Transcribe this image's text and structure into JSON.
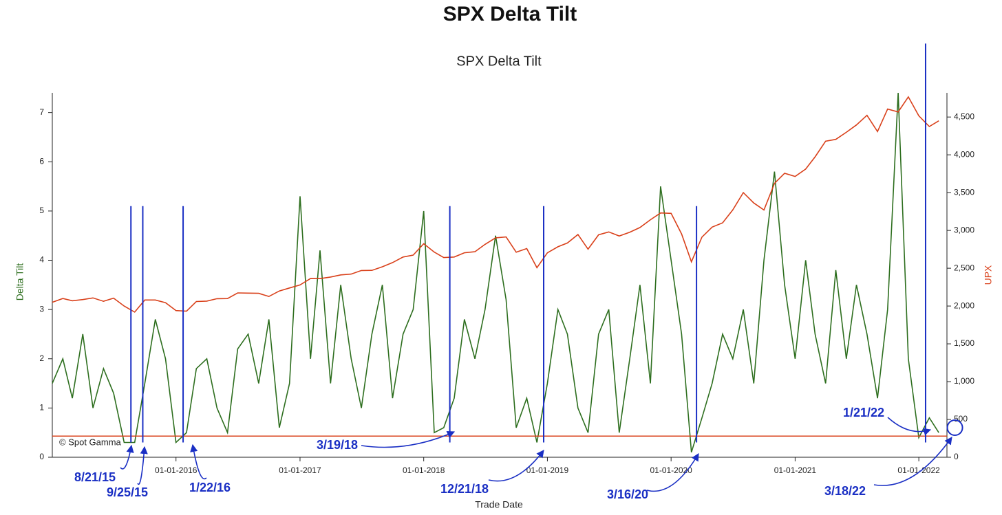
{
  "chart_data": {
    "type": "line",
    "title": "SPX Delta Tilt",
    "subtitle": "SPX Delta Tilt",
    "xlabel": "Trade Date",
    "ylabel": "Delta Tilt",
    "y2label": "UPX",
    "credit": "© Spot Gamma",
    "xlim": [
      "2015-01-01",
      "2022-03-25"
    ],
    "xticks": [
      {
        "value": "2016-01-01",
        "label": "01-01-2016"
      },
      {
        "value": "2017-01-01",
        "label": "01-01-2017"
      },
      {
        "value": "2018-01-01",
        "label": "01-01-2018"
      },
      {
        "value": "2019-01-01",
        "label": "01-01-2019"
      },
      {
        "value": "2020-01-01",
        "label": "01-01-2020"
      },
      {
        "value": "2021-01-01",
        "label": "01-01-2021"
      },
      {
        "value": "2022-01-01",
        "label": "01-01-2022"
      }
    ],
    "ylim": [
      0,
      7.4
    ],
    "yticks": [
      0,
      1,
      2,
      3,
      4,
      5,
      6,
      7
    ],
    "y2lim": [
      0,
      4820
    ],
    "y2ticks": [
      0,
      500,
      {
        "value": 1000,
        "label": "1,000"
      },
      {
        "value": 1500,
        "label": "1,500"
      },
      {
        "value": 2000,
        "label": "2,000"
      },
      {
        "value": 2500,
        "label": "2,500"
      },
      {
        "value": 3000,
        "label": "3,000"
      },
      {
        "value": 3500,
        "label": "3,500"
      },
      {
        "value": 4000,
        "label": "4,000"
      },
      {
        "value": 4500,
        "label": "4,500"
      }
    ],
    "x": [
      "2015-01-01",
      "2015-02-01",
      "2015-03-01",
      "2015-04-01",
      "2015-05-01",
      "2015-06-01",
      "2015-07-01",
      "2015-08-01",
      "2015-09-01",
      "2015-10-01",
      "2015-11-01",
      "2015-12-01",
      "2016-01-01",
      "2016-02-01",
      "2016-03-01",
      "2016-04-01",
      "2016-05-01",
      "2016-06-01",
      "2016-07-01",
      "2016-08-01",
      "2016-09-01",
      "2016-10-01",
      "2016-11-01",
      "2016-12-01",
      "2017-01-01",
      "2017-02-01",
      "2017-03-01",
      "2017-04-01",
      "2017-05-01",
      "2017-06-01",
      "2017-07-01",
      "2017-08-01",
      "2017-09-01",
      "2017-10-01",
      "2017-11-01",
      "2017-12-01",
      "2018-01-01",
      "2018-02-01",
      "2018-03-01",
      "2018-04-01",
      "2018-05-01",
      "2018-06-01",
      "2018-07-01",
      "2018-08-01",
      "2018-09-01",
      "2018-10-01",
      "2018-11-01",
      "2018-12-01",
      "2019-01-01",
      "2019-02-01",
      "2019-03-01",
      "2019-04-01",
      "2019-05-01",
      "2019-06-01",
      "2019-07-01",
      "2019-08-01",
      "2019-09-01",
      "2019-10-01",
      "2019-11-01",
      "2019-12-01",
      "2020-01-01",
      "2020-02-01",
      "2020-03-01",
      "2020-04-01",
      "2020-05-01",
      "2020-06-01",
      "2020-07-01",
      "2020-08-01",
      "2020-09-01",
      "2020-10-01",
      "2020-11-01",
      "2020-12-01",
      "2021-01-01",
      "2021-02-01",
      "2021-03-01",
      "2021-04-01",
      "2021-05-01",
      "2021-06-01",
      "2021-07-01",
      "2021-08-01",
      "2021-09-01",
      "2021-10-01",
      "2021-11-01",
      "2021-12-01",
      "2022-01-01",
      "2022-02-01",
      "2022-03-01"
    ],
    "series": [
      {
        "name": "Delta Tilt",
        "color": "#2d6e1e",
        "axis": "y",
        "values": [
          1.5,
          2.0,
          1.2,
          2.5,
          1.0,
          1.8,
          1.3,
          0.3,
          0.3,
          1.5,
          2.8,
          2.0,
          0.3,
          0.5,
          1.8,
          2.0,
          1.0,
          0.5,
          2.2,
          2.5,
          1.5,
          2.8,
          0.6,
          1.5,
          5.3,
          2.0,
          4.2,
          1.5,
          3.5,
          2.0,
          1.0,
          2.5,
          3.5,
          1.2,
          2.5,
          3.0,
          5.0,
          0.5,
          0.6,
          1.2,
          2.8,
          2.0,
          3.0,
          4.5,
          3.2,
          0.6,
          1.2,
          0.3,
          1.5,
          3.0,
          2.5,
          1.0,
          0.5,
          2.5,
          3.0,
          0.5,
          2.0,
          3.5,
          1.5,
          5.5,
          4.0,
          2.5,
          0.1,
          0.8,
          1.5,
          2.5,
          2.0,
          3.0,
          1.5,
          4.0,
          5.8,
          3.5,
          2.0,
          4.0,
          2.5,
          1.5,
          3.8,
          2.0,
          3.5,
          2.5,
          1.2,
          3.0,
          7.4,
          2.0,
          0.4,
          0.8,
          0.5
        ]
      },
      {
        "name": "UPX",
        "color": "#d9401a",
        "axis": "y2",
        "values": [
          2050,
          2100,
          2070,
          2085,
          2107,
          2063,
          2104,
          2000,
          1920,
          2080,
          2080,
          2044,
          1940,
          1932,
          2060,
          2065,
          2097,
          2099,
          2174,
          2171,
          2168,
          2126,
          2199,
          2239,
          2279,
          2364,
          2363,
          2384,
          2412,
          2423,
          2470,
          2472,
          2519,
          2575,
          2648,
          2674,
          2824,
          2714,
          2641,
          2648,
          2705,
          2718,
          2816,
          2902,
          2914,
          2712,
          2760,
          2507,
          2704,
          2784,
          2834,
          2946,
          2752,
          2942,
          2980,
          2926,
          2977,
          3038,
          3141,
          3231,
          3226,
          2954,
          2585,
          2912,
          3044,
          3100,
          3271,
          3500,
          3363,
          3270,
          3622,
          3756,
          3714,
          3811,
          3973,
          4181,
          4204,
          4298,
          4395,
          4523,
          4308,
          4605,
          4567,
          4766,
          4516,
          4374,
          4450
        ]
      }
    ],
    "hline": 0.43,
    "hline_color": "#d9401a",
    "annotation_color": "#1a2fc4",
    "annotations": [
      {
        "text": "8/21/15",
        "x": "2015-08-21",
        "spike": 5.1
      },
      {
        "text": "9/25/15",
        "x": "2015-09-25",
        "spike": 5.1
      },
      {
        "text": "1/22/16",
        "x": "2016-01-22",
        "spike": 5.1
      },
      {
        "text": "3/19/18",
        "x": "2018-03-19",
        "spike": 5.1
      },
      {
        "text": "12/21/18",
        "x": "2018-12-21",
        "spike": 5.1
      },
      {
        "text": "3/16/20",
        "x": "2020-03-16",
        "spike": 5.1
      },
      {
        "text": "1/21/22",
        "x": "2022-01-21",
        "spike": 8.4
      },
      {
        "text": "3/18/22",
        "x": "2022-03-18"
      }
    ]
  }
}
